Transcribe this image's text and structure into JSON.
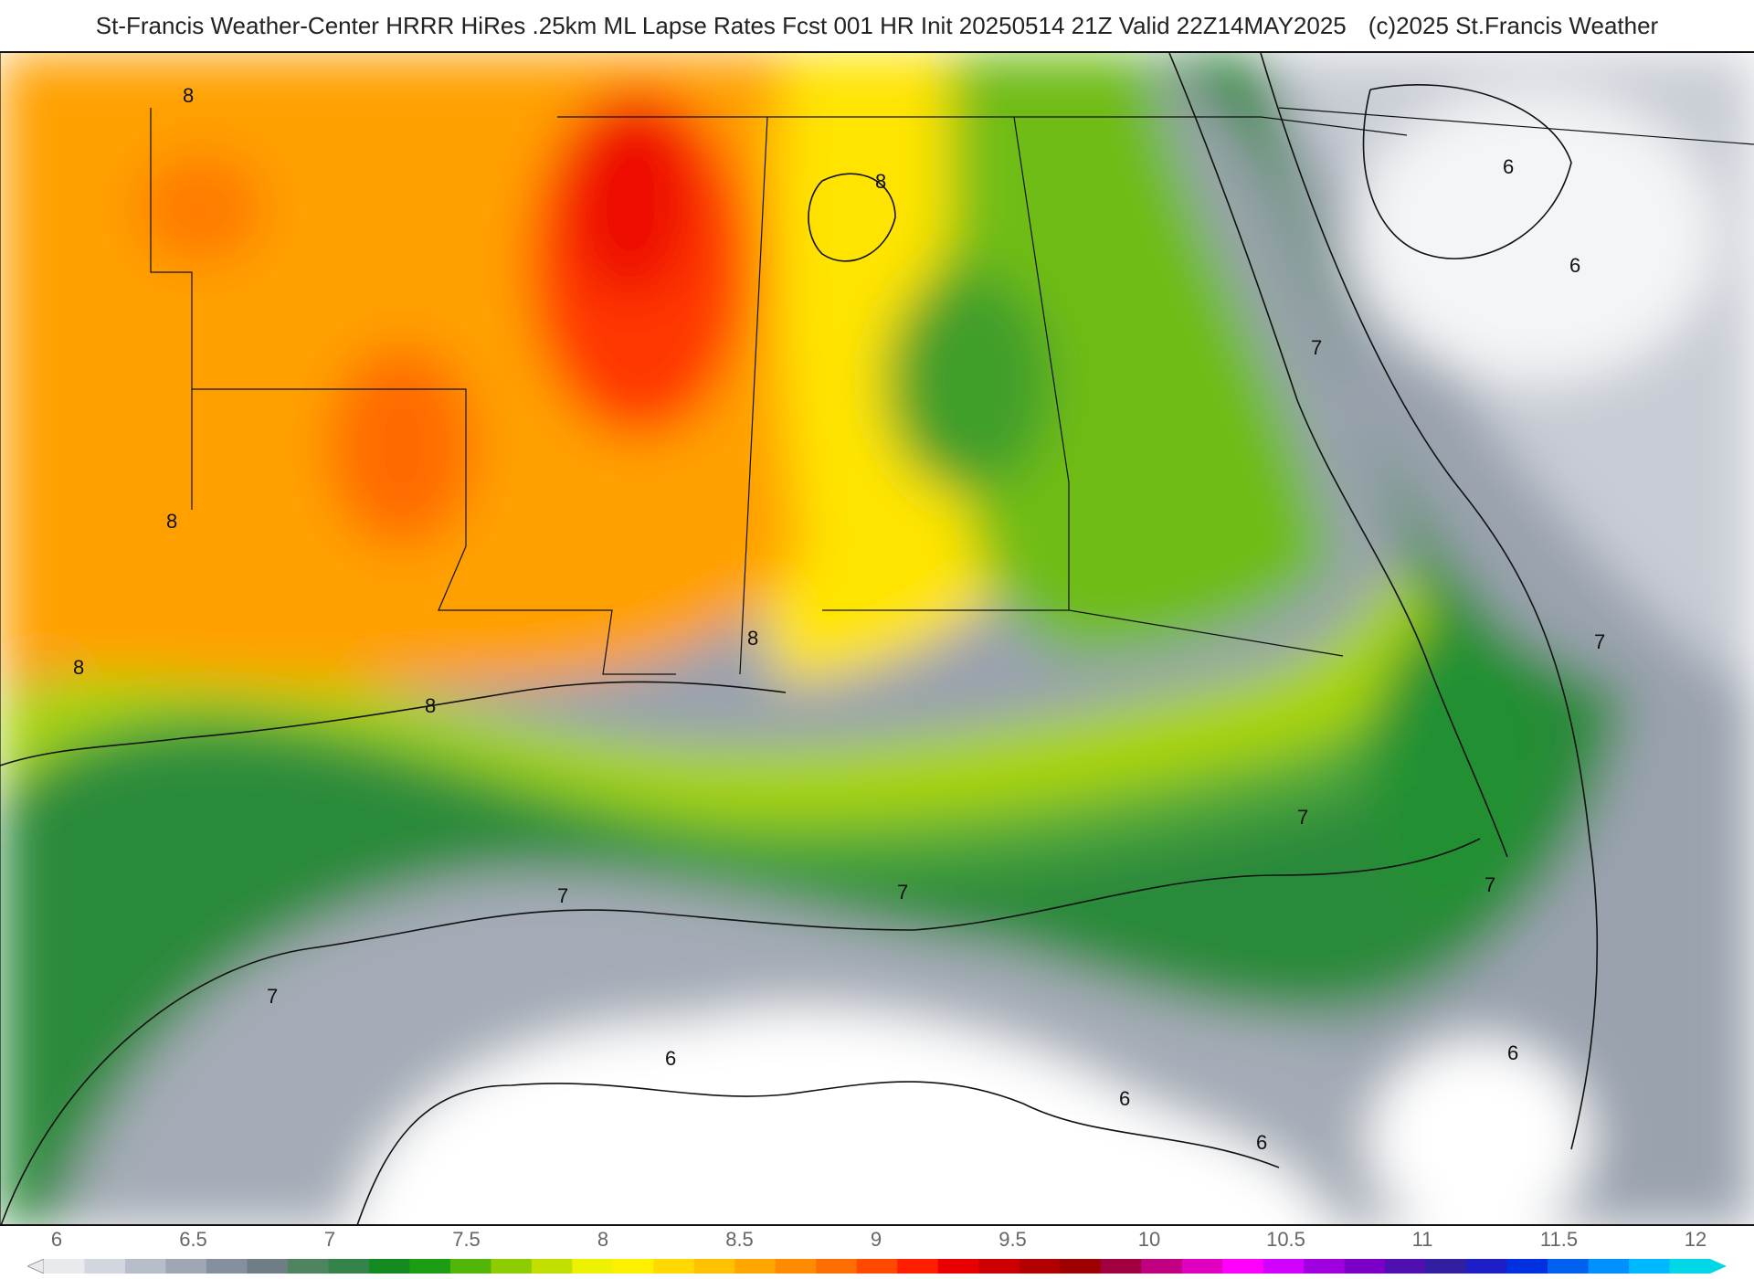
{
  "header": {
    "title": "St-Francis Weather-Center HRRR HiRes .25km ML Lapse Rates  Fcst 001 HR Init 20250514 21Z  Valid 22Z14MAY2025",
    "copyright": "(c)2025 St.Francis Weather"
  },
  "map": {
    "field": "ML Lapse Rates",
    "contour_labels": [
      "8",
      "8",
      "8",
      "8",
      "8",
      "8",
      "7",
      "7",
      "7",
      "7",
      "7",
      "7",
      "7",
      "6",
      "6",
      "6",
      "6",
      "6",
      "6"
    ]
  },
  "legend": {
    "ticks": [
      "6",
      "6.5",
      "7",
      "7.5",
      "8",
      "8.5",
      "9",
      "9.5",
      "10",
      "10.5",
      "11",
      "11.5",
      "12"
    ],
    "colors": [
      "#e8eaee",
      "#d2d6de",
      "#b8bec9",
      "#9ea6b3",
      "#85909e",
      "#6e7d86",
      "#4f8461",
      "#35834a",
      "#138a20",
      "#1c9e14",
      "#52b60a",
      "#8ccc00",
      "#c2e000",
      "#eef200",
      "#fff000",
      "#ffd900",
      "#ffc100",
      "#ffa600",
      "#ff8b00",
      "#ff6c00",
      "#ff4800",
      "#ff1f00",
      "#e80000",
      "#cc0000",
      "#b20000",
      "#9e0000",
      "#a00040",
      "#c00080",
      "#e000c0",
      "#ff00ff",
      "#d200ff",
      "#a000e0",
      "#7a00c8",
      "#5010b0",
      "#3020a0",
      "#1e1ec8",
      "#0030e0",
      "#0060f0",
      "#0090ff",
      "#00b8ff",
      "#00d8e8"
    ]
  }
}
